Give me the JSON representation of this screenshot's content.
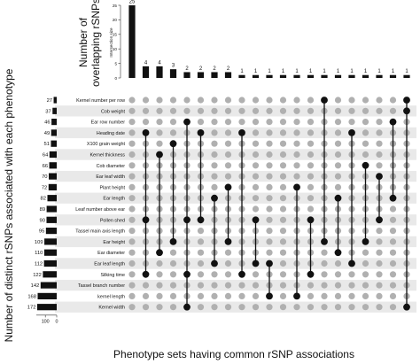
{
  "chart_data": {
    "type": "upset",
    "titles": {
      "top_ylabel_line1": "Number of",
      "top_ylabel_line2": "overlapping rSNPs",
      "top_axis_small": "Intersection size",
      "left_ylabel": "Number of distinct rSNPs associated with each phenotype",
      "bottom_xlabel": "Phenotype sets having common rSNP associations"
    },
    "top_axis": {
      "ylim": [
        0,
        25
      ],
      "ticks": [
        "25",
        "20",
        "15",
        "10",
        "5",
        "0"
      ]
    },
    "left_axis": {
      "xlim": [
        0,
        172
      ],
      "tick_labels": [
        "100",
        "0"
      ],
      "tick_values": [
        100,
        0
      ]
    },
    "sets": [
      {
        "name": "Kernel number per row",
        "size": 27
      },
      {
        "name": "Cob weight",
        "size": 37
      },
      {
        "name": "Ear row number",
        "size": 46
      },
      {
        "name": "Heading date",
        "size": 49
      },
      {
        "name": "X100 grain weight",
        "size": 51
      },
      {
        "name": "Kernel thickness",
        "size": 64
      },
      {
        "name": "Cob diameter",
        "size": 66
      },
      {
        "name": "Ear leaf width",
        "size": 70
      },
      {
        "name": "Plant height",
        "size": 72
      },
      {
        "name": "Ear length",
        "size": 82
      },
      {
        "name": "Leaf number above ear",
        "size": 89
      },
      {
        "name": "Pollen shed",
        "size": 90
      },
      {
        "name": "Tassel main axis length",
        "size": 95
      },
      {
        "name": "Ear height",
        "size": 109
      },
      {
        "name": "Ear diameter",
        "size": 110
      },
      {
        "name": "Ear leaf length",
        "size": 112
      },
      {
        "name": "Silking time",
        "size": 122
      },
      {
        "name": "Tassel branch number",
        "size": 142
      },
      {
        "name": "kernel length",
        "size": 168
      },
      {
        "name": "Kernel width",
        "size": 172
      }
    ],
    "intersections": [
      {
        "size": 25,
        "sets": []
      },
      {
        "size": 4,
        "sets": [
          3,
          11,
          16
        ]
      },
      {
        "size": 4,
        "sets": [
          5,
          14
        ]
      },
      {
        "size": 3,
        "sets": [
          4,
          13
        ]
      },
      {
        "size": 2,
        "sets": [
          2,
          11,
          16,
          19
        ]
      },
      {
        "size": 2,
        "sets": [
          3,
          11
        ]
      },
      {
        "size": 2,
        "sets": [
          9,
          15
        ]
      },
      {
        "size": 2,
        "sets": [
          8,
          13
        ]
      },
      {
        "size": 1,
        "sets": [
          3,
          16
        ]
      },
      {
        "size": 1,
        "sets": [
          11,
          15
        ]
      },
      {
        "size": 1,
        "sets": [
          15,
          18
        ]
      },
      {
        "size": 1,
        "sets": []
      },
      {
        "size": 1,
        "sets": [
          8,
          18
        ]
      },
      {
        "size": 1,
        "sets": [
          11,
          16
        ]
      },
      {
        "size": 1,
        "sets": [
          0,
          13
        ]
      },
      {
        "size": 1,
        "sets": [
          9,
          14
        ]
      },
      {
        "size": 1,
        "sets": [
          3,
          15
        ]
      },
      {
        "size": 1,
        "sets": [
          6,
          13
        ]
      },
      {
        "size": 1,
        "sets": [
          7,
          11
        ]
      },
      {
        "size": 1,
        "sets": [
          2,
          9
        ]
      },
      {
        "size": 1,
        "sets": [
          0,
          1,
          19
        ]
      }
    ]
  }
}
